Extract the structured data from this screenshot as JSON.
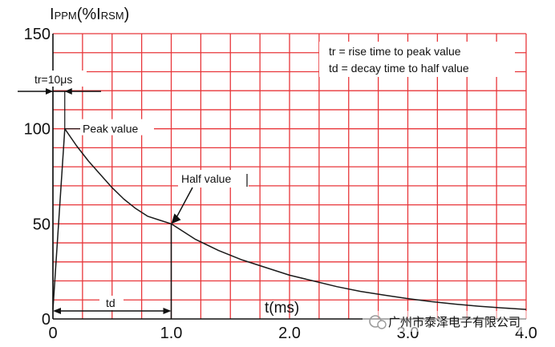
{
  "chart_data": {
    "type": "line",
    "ylabel": "I_PPM(%I_RSM)",
    "ylabel_parts": {
      "main": "I",
      "sub1": "PPM",
      "mid": "(%I",
      "sub2": "RSM",
      "end": ")"
    },
    "xlabel": "t(ms)",
    "xlim": [
      0,
      4.0
    ],
    "ylim": [
      0,
      150
    ],
    "x_ticks": [
      "0",
      "1.0",
      "2.0",
      "3.0",
      "4.0"
    ],
    "y_ticks": [
      "0",
      "50",
      "100",
      "150"
    ],
    "x_tick_values": [
      0,
      1.0,
      2.0,
      3.0,
      4.0
    ],
    "y_tick_values": [
      0,
      50,
      100,
      150
    ],
    "grid": true,
    "grid_x_step": 0.25,
    "grid_y_step": 10,
    "grid_color": "#e8363a",
    "curve_color": "#1a1a1a",
    "series": [
      {
        "x": [
          0,
          0.1,
          0.2,
          0.3,
          0.4,
          0.5,
          0.6,
          0.7,
          0.8,
          0.9,
          1.0,
          1.2,
          1.4,
          1.6,
          1.8,
          2.0,
          2.2,
          2.4,
          2.6,
          2.8,
          3.0,
          3.2,
          3.4,
          3.6,
          3.8,
          4.0
        ],
        "y": [
          5,
          100,
          91,
          83,
          76,
          69,
          63,
          58,
          54,
          52,
          50,
          42,
          36,
          31,
          27,
          23,
          20,
          17,
          14.5,
          12.5,
          10.7,
          9.1,
          7.8,
          6.7,
          5.8,
          5
        ]
      }
    ],
    "annotations": {
      "legend_line1": "tr = rise time to peak value",
      "legend_line2": "td = decay time to half value",
      "tr_label": "tr=10μs",
      "peak_label": "Peak value",
      "half_label": "Half value",
      "td_label": "td",
      "watermark": "广州市泰泽电子有限公司"
    }
  }
}
